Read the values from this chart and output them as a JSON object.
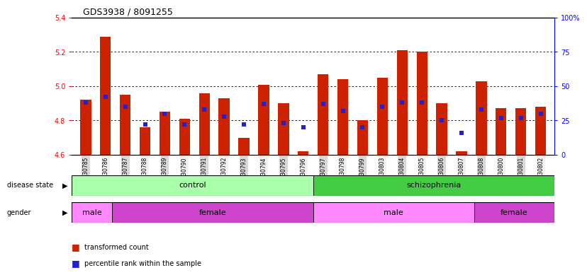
{
  "title": "GDS3938 / 8091255",
  "samples": [
    "GSM630785",
    "GSM630786",
    "GSM630787",
    "GSM630788",
    "GSM630789",
    "GSM630790",
    "GSM630791",
    "GSM630792",
    "GSM630793",
    "GSM630794",
    "GSM630795",
    "GSM630796",
    "GSM630797",
    "GSM630798",
    "GSM630799",
    "GSM630803",
    "GSM630804",
    "GSM630805",
    "GSM630806",
    "GSM630807",
    "GSM630808",
    "GSM630800",
    "GSM630801",
    "GSM630802"
  ],
  "bar_values": [
    4.92,
    5.29,
    4.95,
    4.76,
    4.85,
    4.81,
    4.96,
    4.93,
    4.7,
    5.01,
    4.9,
    4.62,
    5.07,
    5.04,
    4.8,
    5.05,
    5.21,
    5.2,
    4.9,
    4.62,
    5.03,
    4.87,
    4.87,
    4.88
  ],
  "percentile_values": [
    38,
    42,
    35,
    22,
    30,
    22,
    33,
    28,
    22,
    37,
    23,
    20,
    37,
    32,
    20,
    35,
    38,
    38,
    25,
    16,
    33,
    27,
    27,
    30
  ],
  "bar_color": "#cc2200",
  "percentile_color": "#2222cc",
  "ymin": 4.6,
  "ymax": 5.4,
  "yticks": [
    4.6,
    4.8,
    5.0,
    5.2,
    5.4
  ],
  "right_yticks": [
    0,
    25,
    50,
    75,
    100
  ],
  "right_ytick_labels": [
    "0",
    "25",
    "50",
    "75",
    "100%"
  ],
  "disease_state_control": [
    0,
    12
  ],
  "disease_state_schizo": [
    12,
    24
  ],
  "gender_male1": [
    0,
    2
  ],
  "gender_female1": [
    2,
    12
  ],
  "gender_male2": [
    12,
    20
  ],
  "gender_female2": [
    20,
    24
  ],
  "control_color": "#aaffaa",
  "schizophrenia_color": "#44cc44",
  "male_color": "#ff88ff",
  "female_color": "#cc44cc",
  "bg_color": "#ffffff",
  "tick_bg_even": "#d8d8d8",
  "tick_bg_odd": "#f0f0f0"
}
